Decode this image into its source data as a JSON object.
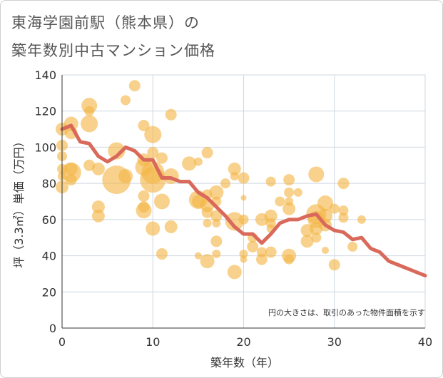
{
  "title_line1": "東海学園前駅（熊本県）の",
  "title_line2": "築年数別中古マンション価格",
  "colors": {
    "bubble": "#f3b446",
    "line": "#d9695a",
    "grid": "#cfd8e0",
    "axis": "#333333"
  },
  "chart_data": {
    "type": "scatter",
    "xlabel": "築年数（年）",
    "ylabel": "坪（3.3㎡）単価（万円）",
    "xlim": [
      0,
      40
    ],
    "ylim": [
      0,
      140
    ],
    "xticks": [
      0,
      10,
      20,
      30,
      40
    ],
    "yticks": [
      0,
      20,
      40,
      60,
      80,
      100,
      120,
      140
    ],
    "grid": true,
    "note": "円の大きさは、取引のあった物件面積を示す",
    "bubbles": [
      {
        "x": 0,
        "y": 110,
        "s": 9
      },
      {
        "x": 0,
        "y": 101,
        "s": 8
      },
      {
        "x": 0,
        "y": 95,
        "s": 7
      },
      {
        "x": 0,
        "y": 88,
        "s": 7
      },
      {
        "x": 0,
        "y": 84,
        "s": 6
      },
      {
        "x": 0,
        "y": 78,
        "s": 9
      },
      {
        "x": 1,
        "y": 113,
        "s": 10
      },
      {
        "x": 1,
        "y": 108,
        "s": 9
      },
      {
        "x": 1,
        "y": 88,
        "s": 9
      },
      {
        "x": 1,
        "y": 86,
        "s": 14
      },
      {
        "x": 1,
        "y": 82,
        "s": 8
      },
      {
        "x": 3,
        "y": 123,
        "s": 11
      },
      {
        "x": 3,
        "y": 120,
        "s": 7
      },
      {
        "x": 3,
        "y": 113,
        "s": 12
      },
      {
        "x": 3,
        "y": 90,
        "s": 8
      },
      {
        "x": 4,
        "y": 88,
        "s": 9
      },
      {
        "x": 4,
        "y": 67,
        "s": 9
      },
      {
        "x": 4,
        "y": 62,
        "s": 9
      },
      {
        "x": 6,
        "y": 98,
        "s": 12
      },
      {
        "x": 6,
        "y": 82,
        "s": 20
      },
      {
        "x": 7,
        "y": 126,
        "s": 7
      },
      {
        "x": 7,
        "y": 84,
        "s": 10
      },
      {
        "x": 8,
        "y": 134,
        "s": 8
      },
      {
        "x": 9,
        "y": 112,
        "s": 8
      },
      {
        "x": 9,
        "y": 93,
        "s": 9
      },
      {
        "x": 9,
        "y": 89,
        "s": 12
      },
      {
        "x": 9,
        "y": 73,
        "s": 8
      },
      {
        "x": 9,
        "y": 67,
        "s": 8
      },
      {
        "x": 9,
        "y": 65,
        "s": 11
      },
      {
        "x": 10,
        "y": 107,
        "s": 12
      },
      {
        "x": 10,
        "y": 97,
        "s": 8
      },
      {
        "x": 10,
        "y": 86,
        "s": 16
      },
      {
        "x": 10,
        "y": 82,
        "s": 18
      },
      {
        "x": 10,
        "y": 55,
        "s": 10
      },
      {
        "x": 11,
        "y": 94,
        "s": 8
      },
      {
        "x": 11,
        "y": 70,
        "s": 11
      },
      {
        "x": 11,
        "y": 41,
        "s": 8
      },
      {
        "x": 12,
        "y": 118,
        "s": 8
      },
      {
        "x": 12,
        "y": 84,
        "s": 11
      },
      {
        "x": 12,
        "y": 56,
        "s": 9
      },
      {
        "x": 14,
        "y": 91,
        "s": 10
      },
      {
        "x": 15,
        "y": 92,
        "s": 6
      },
      {
        "x": 15,
        "y": 71,
        "s": 13
      },
      {
        "x": 15,
        "y": 70,
        "s": 9
      },
      {
        "x": 15,
        "y": 40,
        "s": 5
      },
      {
        "x": 16,
        "y": 97,
        "s": 8
      },
      {
        "x": 16,
        "y": 74,
        "s": 7
      },
      {
        "x": 16,
        "y": 68,
        "s": 10
      },
      {
        "x": 16,
        "y": 64,
        "s": 8
      },
      {
        "x": 16,
        "y": 58,
        "s": 6
      },
      {
        "x": 16,
        "y": 37,
        "s": 10
      },
      {
        "x": 17,
        "y": 75,
        "s": 10
      },
      {
        "x": 17,
        "y": 70,
        "s": 7
      },
      {
        "x": 17,
        "y": 62,
        "s": 8
      },
      {
        "x": 17,
        "y": 58,
        "s": 6
      },
      {
        "x": 17,
        "y": 48,
        "s": 8
      },
      {
        "x": 17,
        "y": 41,
        "s": 6
      },
      {
        "x": 18,
        "y": 80,
        "s": 7
      },
      {
        "x": 19,
        "y": 88,
        "s": 9
      },
      {
        "x": 19,
        "y": 84,
        "s": 6
      },
      {
        "x": 19,
        "y": 59,
        "s": 13
      },
      {
        "x": 19,
        "y": 31,
        "s": 10
      },
      {
        "x": 20,
        "y": 83,
        "s": 8
      },
      {
        "x": 20,
        "y": 72,
        "s": 4
      },
      {
        "x": 20,
        "y": 60,
        "s": 7
      },
      {
        "x": 20,
        "y": 41,
        "s": 6
      },
      {
        "x": 20,
        "y": 38,
        "s": 5
      },
      {
        "x": 21,
        "y": 50,
        "s": 7
      },
      {
        "x": 21,
        "y": 45,
        "s": 8
      },
      {
        "x": 22,
        "y": 60,
        "s": 9
      },
      {
        "x": 22,
        "y": 42,
        "s": 7
      },
      {
        "x": 22,
        "y": 38,
        "s": 8
      },
      {
        "x": 23,
        "y": 81,
        "s": 7
      },
      {
        "x": 23,
        "y": 62,
        "s": 9
      },
      {
        "x": 23,
        "y": 58,
        "s": 7
      },
      {
        "x": 23,
        "y": 55,
        "s": 6
      },
      {
        "x": 23,
        "y": 42,
        "s": 8
      },
      {
        "x": 24,
        "y": 70,
        "s": 7
      },
      {
        "x": 25,
        "y": 82,
        "s": 8
      },
      {
        "x": 25,
        "y": 75,
        "s": 7
      },
      {
        "x": 25,
        "y": 70,
        "s": 6
      },
      {
        "x": 25,
        "y": 66,
        "s": 9
      },
      {
        "x": 25,
        "y": 40,
        "s": 10
      },
      {
        "x": 25,
        "y": 38,
        "s": 7
      },
      {
        "x": 26,
        "y": 75,
        "s": 6
      },
      {
        "x": 27,
        "y": 54,
        "s": 9
      },
      {
        "x": 27,
        "y": 48,
        "s": 9
      },
      {
        "x": 28,
        "y": 85,
        "s": 11
      },
      {
        "x": 28,
        "y": 63,
        "s": 14
      },
      {
        "x": 28,
        "y": 60,
        "s": 12
      },
      {
        "x": 28,
        "y": 55,
        "s": 9
      },
      {
        "x": 28,
        "y": 50,
        "s": 7
      },
      {
        "x": 29,
        "y": 69,
        "s": 11
      },
      {
        "x": 29,
        "y": 62,
        "s": 10
      },
      {
        "x": 29,
        "y": 57,
        "s": 9
      },
      {
        "x": 29,
        "y": 43,
        "s": 5
      },
      {
        "x": 30,
        "y": 66,
        "s": 7
      },
      {
        "x": 30,
        "y": 35,
        "s": 8
      },
      {
        "x": 31,
        "y": 80,
        "s": 8
      },
      {
        "x": 31,
        "y": 65,
        "s": 7
      },
      {
        "x": 31,
        "y": 61,
        "s": 7
      },
      {
        "x": 32,
        "y": 45,
        "s": 7
      },
      {
        "x": 33,
        "y": 60,
        "s": 6
      }
    ],
    "trend": {
      "x": [
        0,
        1,
        2,
        3,
        4,
        5,
        6,
        7,
        8,
        9,
        10,
        11,
        12,
        13,
        14,
        15,
        16,
        17,
        18,
        19,
        20,
        21,
        22,
        23,
        24,
        25,
        26,
        27,
        28,
        29,
        30,
        31,
        32,
        33,
        34,
        35,
        36,
        37,
        38,
        39,
        40
      ],
      "y": [
        110,
        112,
        103,
        102,
        95,
        92,
        95,
        100,
        98,
        93,
        93,
        83,
        83,
        81,
        81,
        75,
        72,
        67,
        62,
        56,
        52,
        52,
        47,
        52,
        58,
        60,
        60,
        62,
        63,
        57,
        54,
        53,
        49,
        50,
        44,
        42,
        37,
        35,
        33,
        31,
        29
      ]
    }
  }
}
